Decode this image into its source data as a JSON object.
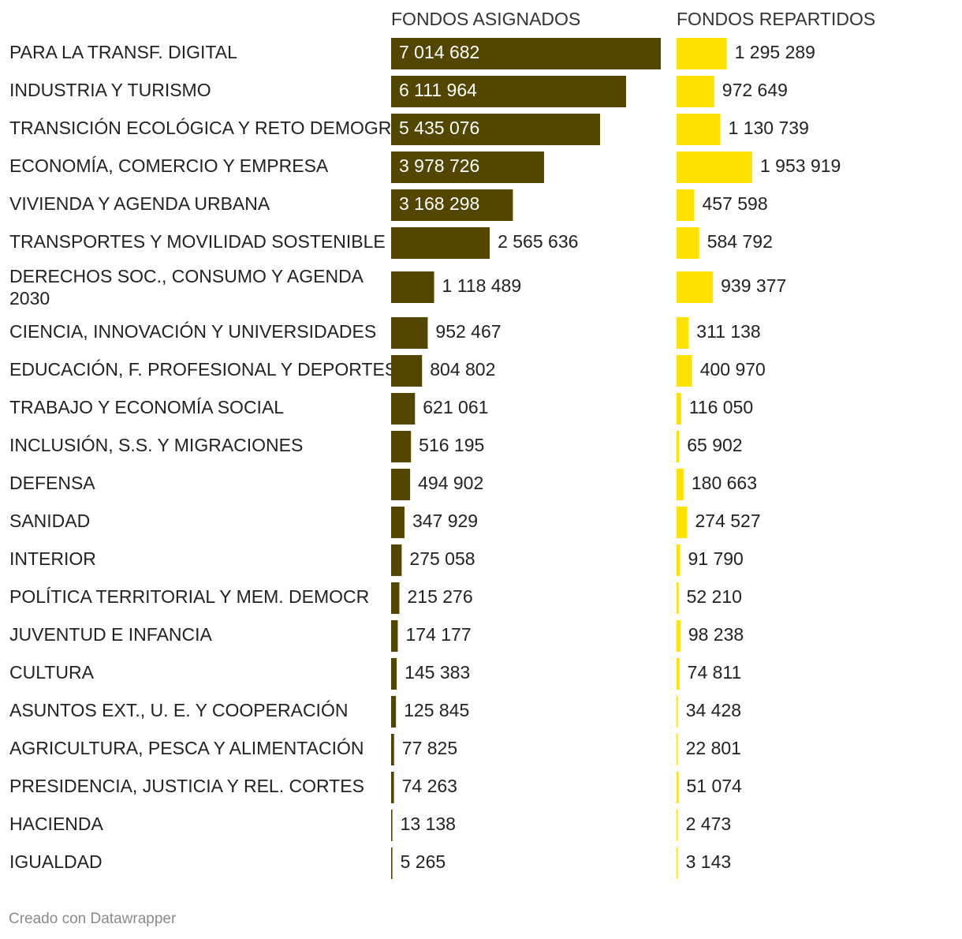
{
  "chart_data": {
    "type": "bar",
    "title": "",
    "orientation": "horizontal",
    "colors": {
      "asignados": "#524600",
      "repartidos": "#ffe200",
      "label_inside": "#ffffff",
      "label_outside": "#222222"
    },
    "categories": [
      "PARA LA TRANSF. DIGITAL",
      "INDUSTRIA Y TURISMO",
      "TRANSICIÓN ECOLÓGICA Y RETO DEMOGR.",
      "ECONOMÍA, COMERCIO Y EMPRESA",
      "VIVIENDA Y AGENDA URBANA",
      "TRANSPORTES Y MOVILIDAD SOSTENIBLE",
      "DERECHOS SOC., CONSUMO Y AGENDA 2030",
      "CIENCIA, INNOVACIÓN Y UNIVERSIDADES",
      "EDUCACIÓN, F. PROFESIONAL Y DEPORTES",
      "TRABAJO Y ECONOMÍA SOCIAL",
      "INCLUSIÓN, S.S. Y MIGRACIONES",
      "DEFENSA",
      "SANIDAD",
      "INTERIOR",
      "POLÍTICA TERRITORIAL Y MEM. DEMOCR",
      "JUVENTUD E INFANCIA",
      "CULTURA",
      "ASUNTOS EXT., U. E. Y COOPERACIÓN",
      "AGRICULTURA, PESCA Y ALIMENTACIÓN",
      "PRESIDENCIA, JUSTICIA Y REL. CORTES",
      "HACIENDA",
      "IGUALDAD"
    ],
    "series": [
      {
        "name": "FONDOS ASIGNADOS",
        "values": [
          7014682,
          6111964,
          5435076,
          3978726,
          3168298,
          2565636,
          1118489,
          952467,
          804802,
          621061,
          516195,
          494902,
          347929,
          275058,
          215276,
          174177,
          145383,
          125845,
          77825,
          74263,
          13138,
          5265
        ],
        "labels": [
          "7 014 682",
          "6 111 964",
          "5 435 076",
          "3 978 726",
          "3 168 298",
          "2 565 636",
          "1 118 489",
          "952 467",
          "804 802",
          "621 061",
          "516 195",
          "494 902",
          "347 929",
          "275 058",
          "215 276",
          "174 177",
          "145 383",
          "125 845",
          "77 825",
          "74 263",
          "13 138",
          "5 265"
        ]
      },
      {
        "name": "FONDOS REPARTIDOS",
        "values": [
          1295289,
          972649,
          1130739,
          1953919,
          457598,
          584792,
          939377,
          311138,
          400970,
          116050,
          65902,
          180663,
          274527,
          91790,
          52210,
          98238,
          74811,
          34428,
          22801,
          51074,
          2473,
          3143
        ],
        "labels": [
          "1 295 289",
          "972 649",
          "1 130 739",
          "1 953 919",
          "457 598",
          "584 792",
          "939 377",
          "311 138",
          "400 970",
          "116 050",
          "65 902",
          "180 663",
          "274 527",
          "91 790",
          "52 210",
          "98 238",
          "74 811",
          "34 428",
          "22 801",
          "51 074",
          "2 473",
          "3 143"
        ]
      }
    ]
  },
  "footer": {
    "credit": "Creado con Datawrapper"
  }
}
